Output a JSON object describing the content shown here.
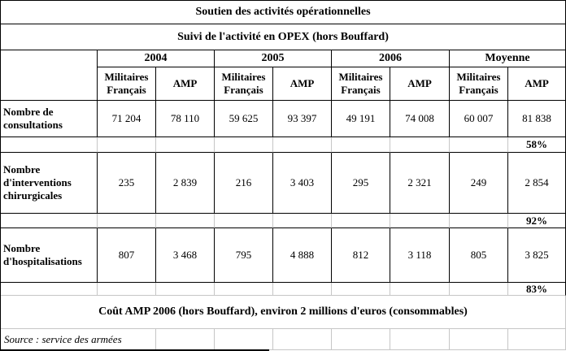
{
  "title": "Soutien des activités opérationnelles",
  "subtitle": "Suivi de l'activité en OPEX (hors Bouffard)",
  "years": [
    "2004",
    "2005",
    "2006",
    "Moyenne"
  ],
  "subheaders": [
    "Militaires Français",
    "AMP",
    "Militaires Français",
    "AMP",
    "Militaires Français",
    "AMP",
    "Militaires Français",
    "AMP"
  ],
  "rows": [
    {
      "label": "Nombre de consultations",
      "values": [
        "71 204",
        "78 110",
        "59 625",
        "93 397",
        "49 191",
        "74 008",
        "60 007",
        "81 838"
      ],
      "pct": "58%"
    },
    {
      "label": "Nombre d'interventions chirurgicales",
      "values": [
        "235",
        "2 839",
        "216",
        "3 403",
        "295",
        "2 321",
        "249",
        "2 854"
      ],
      "pct": "92%"
    },
    {
      "label": "Nombre d'hospitalisations",
      "values": [
        "807",
        "3 468",
        "795",
        "4 888",
        "812",
        "3 118",
        "805",
        "3 825"
      ],
      "pct": "83%"
    }
  ],
  "footer": {
    "cost_note": "Coût AMP 2006 (hors Bouffard), environ 2 millions d'euros (consommables)",
    "source": "Source : service des armées"
  },
  "colors": {
    "border_black": "#000000",
    "gridline_gray": "#c6c6c6",
    "background": "#ffffff",
    "text": "#000000"
  },
  "chart_data": {
    "type": "table",
    "title": "Soutien des activités opérationnelles",
    "subtitle": "Suivi de l'activité en OPEX (hors Bouffard)",
    "column_groups": [
      "2004",
      "2005",
      "2006",
      "Moyenne"
    ],
    "sub_columns": [
      "Militaires Français",
      "AMP"
    ],
    "series": [
      {
        "name": "Nombre de consultations",
        "values": [
          71204,
          78110,
          59625,
          93397,
          49191,
          74008,
          60007,
          81838
        ],
        "amp_share_moyenne": "58%"
      },
      {
        "name": "Nombre d'interventions chirurgicales",
        "values": [
          235,
          2839,
          216,
          3403,
          295,
          2321,
          249,
          2854
        ],
        "amp_share_moyenne": "92%"
      },
      {
        "name": "Nombre d'hospitalisations",
        "values": [
          807,
          3468,
          795,
          4888,
          812,
          3118,
          805,
          3825
        ],
        "amp_share_moyenne": "83%"
      }
    ],
    "notes": [
      "Coût AMP 2006 (hors Bouffard), environ 2 millions d'euros (consommables)",
      "Source : service des armées"
    ]
  }
}
